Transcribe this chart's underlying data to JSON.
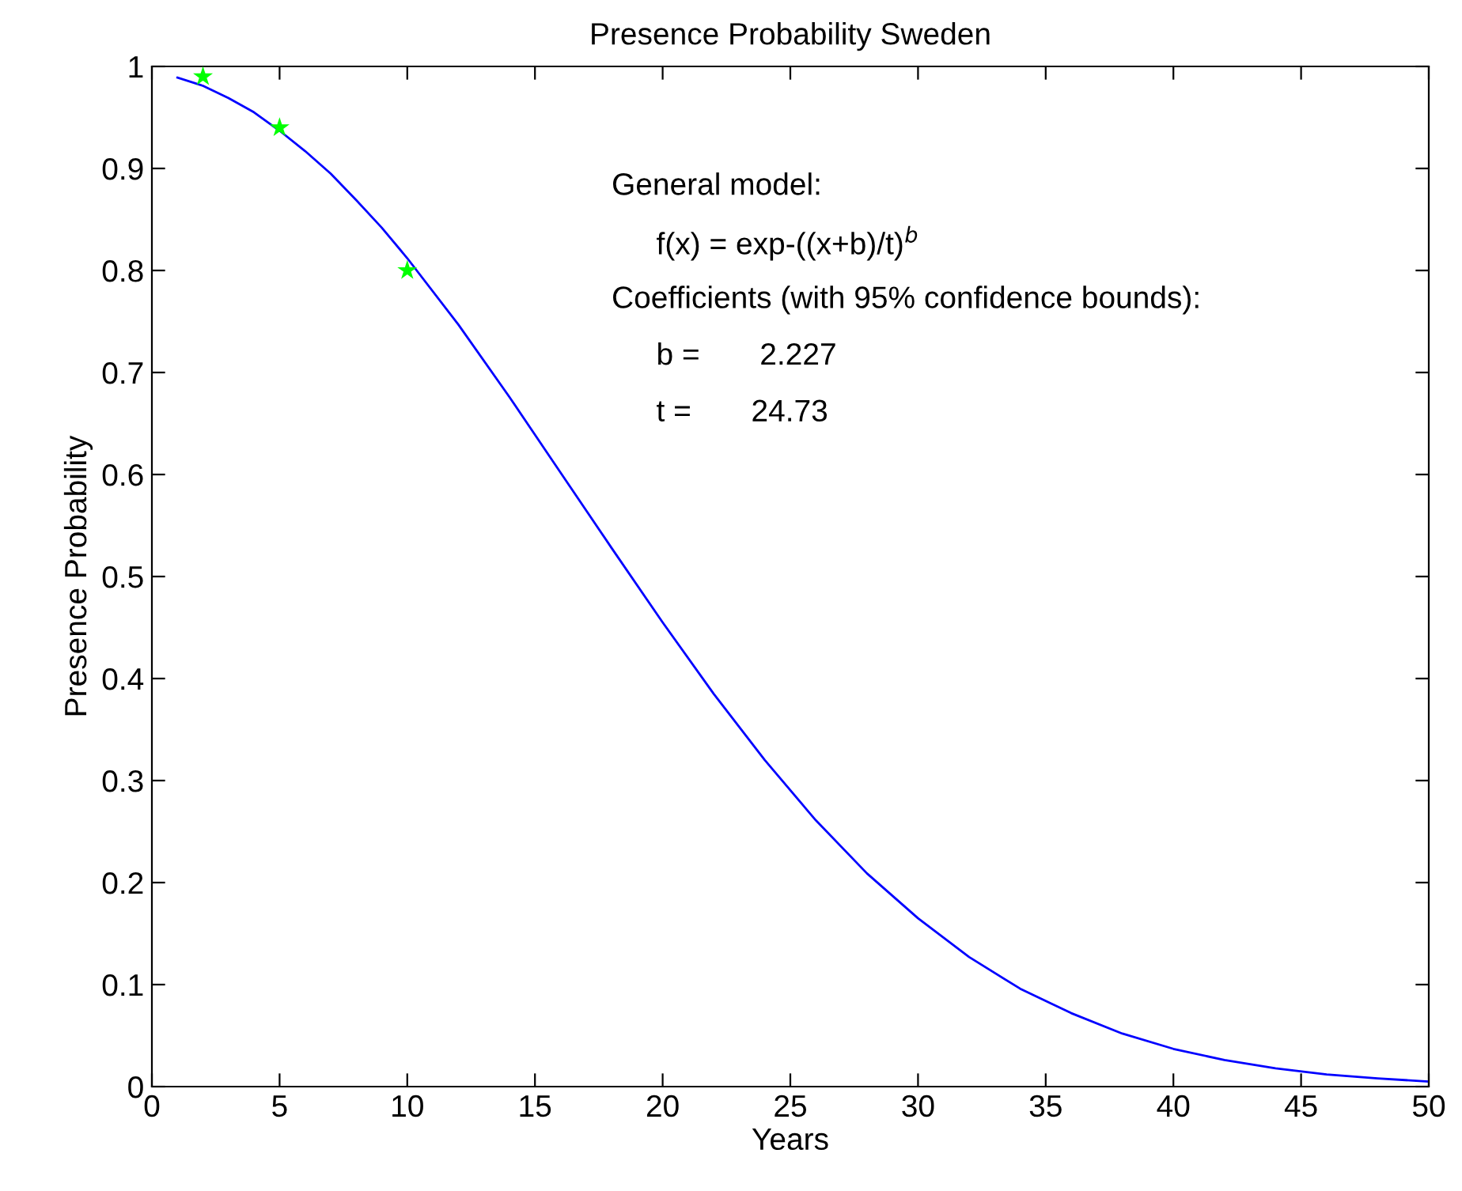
{
  "chart_data": {
    "type": "line",
    "title": "Presence Probability Sweden",
    "xlabel": "Years",
    "ylabel": "Presence Probability",
    "series": [
      {
        "color": "#0000ff",
        "marker": "none",
        "line_style": "solid",
        "x": [
          1,
          2,
          3,
          4,
          5,
          6,
          7,
          8,
          9,
          10,
          12,
          14,
          16,
          18,
          20,
          22,
          24,
          26,
          28,
          30,
          32,
          34,
          36,
          38,
          40,
          42,
          44,
          46,
          48,
          50
        ],
        "values": [
          0.989,
          0.981,
          0.969,
          0.955,
          0.937,
          0.917,
          0.895,
          0.869,
          0.842,
          0.812,
          0.747,
          0.676,
          0.602,
          0.528,
          0.455,
          0.385,
          0.32,
          0.261,
          0.209,
          0.165,
          0.127,
          0.096,
          0.072,
          0.052,
          0.037,
          0.026,
          0.018,
          0.012,
          0.008,
          0.005
        ]
      },
      {
        "type": "scatter",
        "color": "#00ff00",
        "marker": "star",
        "x": [
          2,
          5,
          10
        ],
        "values": [
          0.99,
          0.94,
          0.8
        ]
      }
    ],
    "xlim": [
      0,
      50
    ],
    "xticks": [
      0,
      5,
      10,
      15,
      20,
      25,
      30,
      35,
      40,
      45,
      50
    ],
    "ylim": [
      0,
      1
    ],
    "yticks": [
      0,
      0.1,
      0.2,
      0.3,
      0.4,
      0.5,
      0.6,
      0.7,
      0.8,
      0.9,
      1
    ],
    "grid": false,
    "legend": false,
    "annotations": [
      "General model:",
      "f(x) = exp-((x+b)/t)$^{b}$",
      "Coefficients (with 95% confidence bounds):",
      "b =       2.227",
      "t =       24.73"
    ]
  }
}
